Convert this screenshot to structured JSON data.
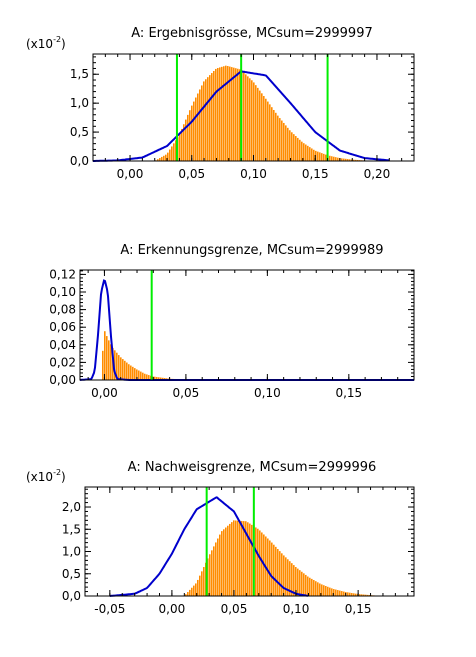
{
  "colors": {
    "histogram": "#ff8c00",
    "curve": "#0000cc",
    "limits": "#00ee00",
    "frame": "#000000"
  },
  "chart_data": [
    {
      "type": "area",
      "title": "A:  Ergebnisgrösse,  MCsum=2999997",
      "y_scale_label": "(x10",
      "y_scale_exp": "-2",
      "y_scale_close": ")",
      "xlim": [
        -0.03,
        0.23
      ],
      "ylim": [
        0,
        1.85
      ],
      "x_ticks": [
        0.0,
        0.05,
        0.1,
        0.15,
        0.2
      ],
      "x_tick_labels": [
        "0,00",
        "0,05",
        "0,10",
        "0,15",
        "0,20"
      ],
      "y_ticks": [
        0.0,
        0.5,
        1.0,
        1.5
      ],
      "y_tick_labels": [
        "0,0",
        "0,5",
        "1,0",
        "1,5"
      ],
      "series": [
        {
          "kind": "histogram",
          "color": "#ff8c00",
          "x": [
            0.02,
            0.03,
            0.04,
            0.05,
            0.06,
            0.07,
            0.078,
            0.09,
            0.1,
            0.11,
            0.12,
            0.13,
            0.14,
            0.15,
            0.16,
            0.17,
            0.18,
            0.19,
            0.2
          ],
          "y": [
            0.0,
            0.12,
            0.45,
            0.95,
            1.38,
            1.6,
            1.65,
            1.58,
            1.37,
            1.08,
            0.78,
            0.52,
            0.32,
            0.18,
            0.1,
            0.05,
            0.025,
            0.01,
            0.0
          ]
        },
        {
          "kind": "curve",
          "color": "#0000cc",
          "x": [
            -0.03,
            -0.01,
            0.01,
            0.03,
            0.05,
            0.07,
            0.09,
            0.11,
            0.13,
            0.15,
            0.17,
            0.19,
            0.21
          ],
          "y": [
            0.0,
            0.01,
            0.06,
            0.26,
            0.68,
            1.2,
            1.55,
            1.48,
            1.0,
            0.5,
            0.18,
            0.05,
            0.01
          ]
        }
      ],
      "vlines": [
        0.038,
        0.09,
        0.16
      ]
    },
    {
      "type": "area",
      "title": "A:  Erkennungsgrenze,  MCsum=2999989",
      "xlim": [
        -0.015,
        0.19
      ],
      "ylim": [
        0,
        0.125
      ],
      "x_ticks": [
        0.0,
        0.05,
        0.1,
        0.15
      ],
      "x_tick_labels": [
        "0,00",
        "0,05",
        "0,10",
        "0,15"
      ],
      "y_ticks": [
        0.0,
        0.02,
        0.04,
        0.06,
        0.08,
        0.1,
        0.12
      ],
      "y_tick_labels": [
        "0,00",
        "0,02",
        "0,04",
        "0,06",
        "0,08",
        "0,10",
        "0,12"
      ],
      "series": [
        {
          "kind": "histogram",
          "color": "#ff8c00",
          "x": [
            -0.002,
            -0.001,
            0.0,
            0.002,
            0.005,
            0.01,
            0.015,
            0.02,
            0.025,
            0.03,
            0.04,
            0.05,
            0.06
          ],
          "y": [
            0.0,
            0.03,
            0.057,
            0.048,
            0.037,
            0.026,
            0.018,
            0.012,
            0.007,
            0.004,
            0.0015,
            0.0005,
            0.0
          ]
        },
        {
          "kind": "curve",
          "color": "#0000cc",
          "x": [
            -0.015,
            -0.008,
            -0.006,
            -0.004,
            -0.002,
            0.0,
            0.002,
            0.004,
            0.006,
            0.008,
            0.015,
            0.19
          ],
          "y": [
            0.0,
            0.001,
            0.01,
            0.05,
            0.1,
            0.115,
            0.1,
            0.05,
            0.01,
            0.001,
            0.0,
            0.0
          ]
        }
      ],
      "vlines": [
        0.029
      ]
    },
    {
      "type": "area",
      "title": "A:  Nachweisgrenze,  MCsum=2999996",
      "y_scale_label": "(x10",
      "y_scale_exp": "-2",
      "y_scale_close": ")",
      "xlim": [
        -0.07,
        0.195
      ],
      "ylim": [
        0,
        2.45
      ],
      "x_ticks": [
        -0.05,
        0.0,
        0.05,
        0.1,
        0.15
      ],
      "x_tick_labels": [
        "-0,05",
        "0,00",
        "0,05",
        "0,10",
        "0,15"
      ],
      "y_ticks": [
        0.0,
        0.5,
        1.0,
        1.5,
        2.0
      ],
      "y_tick_labels": [
        "0,0",
        "0,5",
        "1,0",
        "1,5",
        "2,0"
      ],
      "series": [
        {
          "kind": "histogram",
          "color": "#ff8c00",
          "x": [
            0.01,
            0.02,
            0.03,
            0.04,
            0.05,
            0.06,
            0.07,
            0.08,
            0.09,
            0.1,
            0.11,
            0.12,
            0.13,
            0.14,
            0.15,
            0.16,
            0.17
          ],
          "y": [
            0.0,
            0.3,
            0.9,
            1.45,
            1.7,
            1.68,
            1.5,
            1.22,
            0.92,
            0.65,
            0.43,
            0.27,
            0.16,
            0.09,
            0.045,
            0.02,
            0.0
          ]
        },
        {
          "kind": "curve",
          "color": "#0000cc",
          "x": [
            -0.05,
            -0.03,
            -0.02,
            -0.01,
            0.0,
            0.01,
            0.02,
            0.036,
            0.05,
            0.06,
            0.07,
            0.08,
            0.09,
            0.1,
            0.11
          ],
          "y": [
            0.0,
            0.05,
            0.18,
            0.5,
            0.95,
            1.5,
            1.95,
            2.22,
            1.9,
            1.4,
            0.9,
            0.45,
            0.18,
            0.05,
            0.0
          ]
        }
      ],
      "vlines": [
        0.028,
        0.066
      ]
    }
  ]
}
